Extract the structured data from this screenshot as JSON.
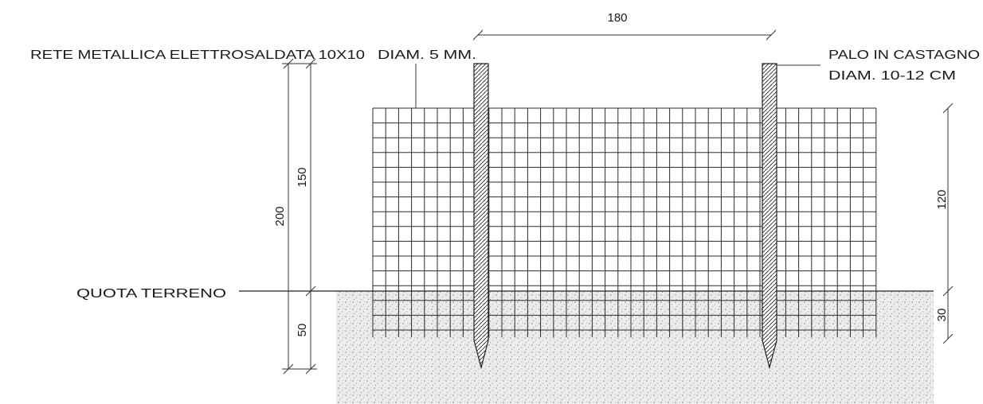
{
  "labels": {
    "mesh": "RETE METALLICA ELETTROSALDATA 10X10",
    "wire_diam": "DIAM. 5 MM.",
    "post_line1": "PALO IN CASTAGNO",
    "post_line2": "DIAM. 10-12 CM",
    "ground": "QUOTA TERRENO"
  },
  "dimensions": {
    "post_spacing": "180",
    "total_height": "200",
    "above_ground": "150",
    "below_ground": "50",
    "mesh_above": "120",
    "mesh_below": "30"
  }
}
